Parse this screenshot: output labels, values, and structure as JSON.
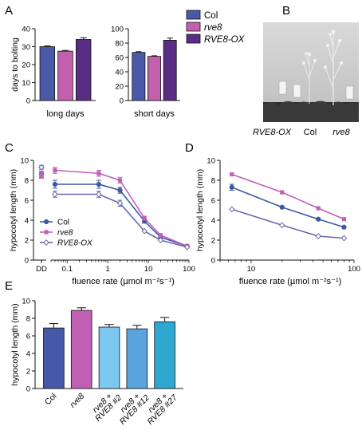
{
  "panel_letters": [
    "A",
    "B",
    "C",
    "D",
    "E"
  ],
  "legend_A": [
    {
      "name": "Col",
      "color": "#4a5aa8",
      "italic": false
    },
    {
      "name": "rve8",
      "color": "#c360ad",
      "italic": true
    },
    {
      "name": "RVE8-OX",
      "color": "#5a2d84",
      "italic": true
    }
  ],
  "photo": {
    "labels": [
      "RVE8-OX",
      "Col",
      "rve8"
    ],
    "label_italic": [
      true,
      false,
      true
    ]
  },
  "colors": {
    "Col": "#3d58a7",
    "rve8": "#c060b8",
    "RVE8-OX": "#6868a8"
  },
  "chart_data": [
    {
      "id": "A1",
      "type": "bar",
      "ylabel": "days to bolting",
      "xlabel": "long days",
      "categories": [
        "Col",
        "rve8",
        "RVE8-OX"
      ],
      "values": [
        30,
        27.5,
        34
      ],
      "errors": [
        0.4,
        0.4,
        1.0
      ],
      "colors": [
        "#4a5aa8",
        "#c360ad",
        "#5a2d84"
      ],
      "ylim": [
        0,
        40
      ],
      "yticks": [
        "0",
        "10",
        "20",
        "30",
        "40"
      ]
    },
    {
      "id": "A2",
      "type": "bar",
      "ylabel": "",
      "xlabel": "short days",
      "categories": [
        "Col",
        "rve8",
        "RVE8-OX"
      ],
      "values": [
        67,
        61.5,
        84
      ],
      "errors": [
        1.0,
        0.8,
        3.0
      ],
      "colors": [
        "#4a5aa8",
        "#c360ad",
        "#5a2d84"
      ],
      "ylim": [
        0,
        100
      ],
      "yticks": [
        "0",
        "20",
        "40",
        "60",
        "80",
        "100"
      ]
    },
    {
      "id": "C",
      "type": "line",
      "xscale": "log",
      "ylabel": "hypocotyl length (mm)",
      "xlabel": "fluence rate (µmol m⁻²s⁻¹)",
      "ylim": [
        0,
        10
      ],
      "yticks": [
        "0",
        "2",
        "4",
        "6",
        "8",
        "10"
      ],
      "xticks": [
        "0.1",
        "1",
        "10",
        "100"
      ],
      "dd_label": "DD",
      "x": [
        0.05,
        0.6,
        2,
        8,
        20,
        90
      ],
      "series": [
        {
          "name": "Col",
          "dd": 8.6,
          "dd_err": 0.3,
          "values": [
            7.6,
            7.6,
            7.0,
            3.9,
            2.3,
            1.4
          ],
          "errors": [
            0.4,
            0.4,
            0.3,
            0.2,
            0.1,
            0.1
          ],
          "marker": "circle",
          "filled": true
        },
        {
          "name": "rve8",
          "dd": 8.5,
          "dd_err": 0.3,
          "values": [
            9.0,
            8.7,
            8.0,
            4.2,
            2.5,
            1.4
          ],
          "errors": [
            0.3,
            0.3,
            0.3,
            0.2,
            0.1,
            0.1
          ],
          "marker": "square",
          "filled": true
        },
        {
          "name": "RVE8-OX",
          "dd": 9.3,
          "dd_err": 0.2,
          "values": [
            6.6,
            6.6,
            5.7,
            2.9,
            2.0,
            1.3
          ],
          "errors": [
            0.3,
            0.3,
            0.3,
            0.1,
            0.1,
            0.1
          ],
          "marker": "diamond",
          "filled": false
        }
      ],
      "legend_position": "lower-left"
    },
    {
      "id": "D",
      "type": "line",
      "xscale": "log",
      "ylabel": "hypocotyl length (mm)",
      "xlabel": "fluence rate (µmol m⁻²s⁻¹)",
      "ylim": [
        0,
        10
      ],
      "yticks": [
        "0",
        "2",
        "4",
        "6",
        "8",
        "10"
      ],
      "xticks": [
        "10",
        "100"
      ],
      "x": [
        6.5,
        20,
        45,
        80
      ],
      "series": [
        {
          "name": "Col",
          "values": [
            7.3,
            5.3,
            4.1,
            3.3
          ],
          "errors": [
            0.3,
            0.1,
            0.1,
            0.1
          ],
          "marker": "circle",
          "filled": true
        },
        {
          "name": "rve8",
          "values": [
            8.6,
            6.8,
            5.2,
            4.1
          ],
          "errors": [
            0.1,
            0.1,
            0.1,
            0.1
          ],
          "marker": "square",
          "filled": true
        },
        {
          "name": "RVE8-OX",
          "values": [
            5.1,
            3.5,
            2.4,
            2.2
          ],
          "errors": [
            0.1,
            0.1,
            0.1,
            0.1
          ],
          "marker": "diamond",
          "filled": false
        }
      ]
    },
    {
      "id": "E",
      "type": "bar",
      "ylabel": "hypocotyl length (mm)",
      "xlabel": "",
      "categories": [
        "Col",
        "rve8",
        "rve8 + RVE8 #2",
        "rve8 + RVE8 #12",
        "rve8 + RVE8 #27"
      ],
      "category_lines": [
        [
          "Col"
        ],
        [
          "rve8"
        ],
        [
          "rve8 +",
          "RVE8 #2"
        ],
        [
          "rve8 +",
          "RVE8 #12"
        ],
        [
          "rve8 +",
          "RVE8 #27"
        ]
      ],
      "category_italic": [
        false,
        true,
        true,
        true,
        true
      ],
      "values": [
        6.9,
        8.9,
        7.0,
        6.8,
        7.6
      ],
      "errors": [
        0.5,
        0.3,
        0.3,
        0.4,
        0.5
      ],
      "colors": [
        "#4758a6",
        "#c05fb3",
        "#7cc8f0",
        "#5aa3dc",
        "#2ea8d0"
      ],
      "ylim": [
        0,
        10
      ],
      "yticks": [
        "0",
        "2",
        "4",
        "6",
        "8",
        "10"
      ]
    }
  ]
}
